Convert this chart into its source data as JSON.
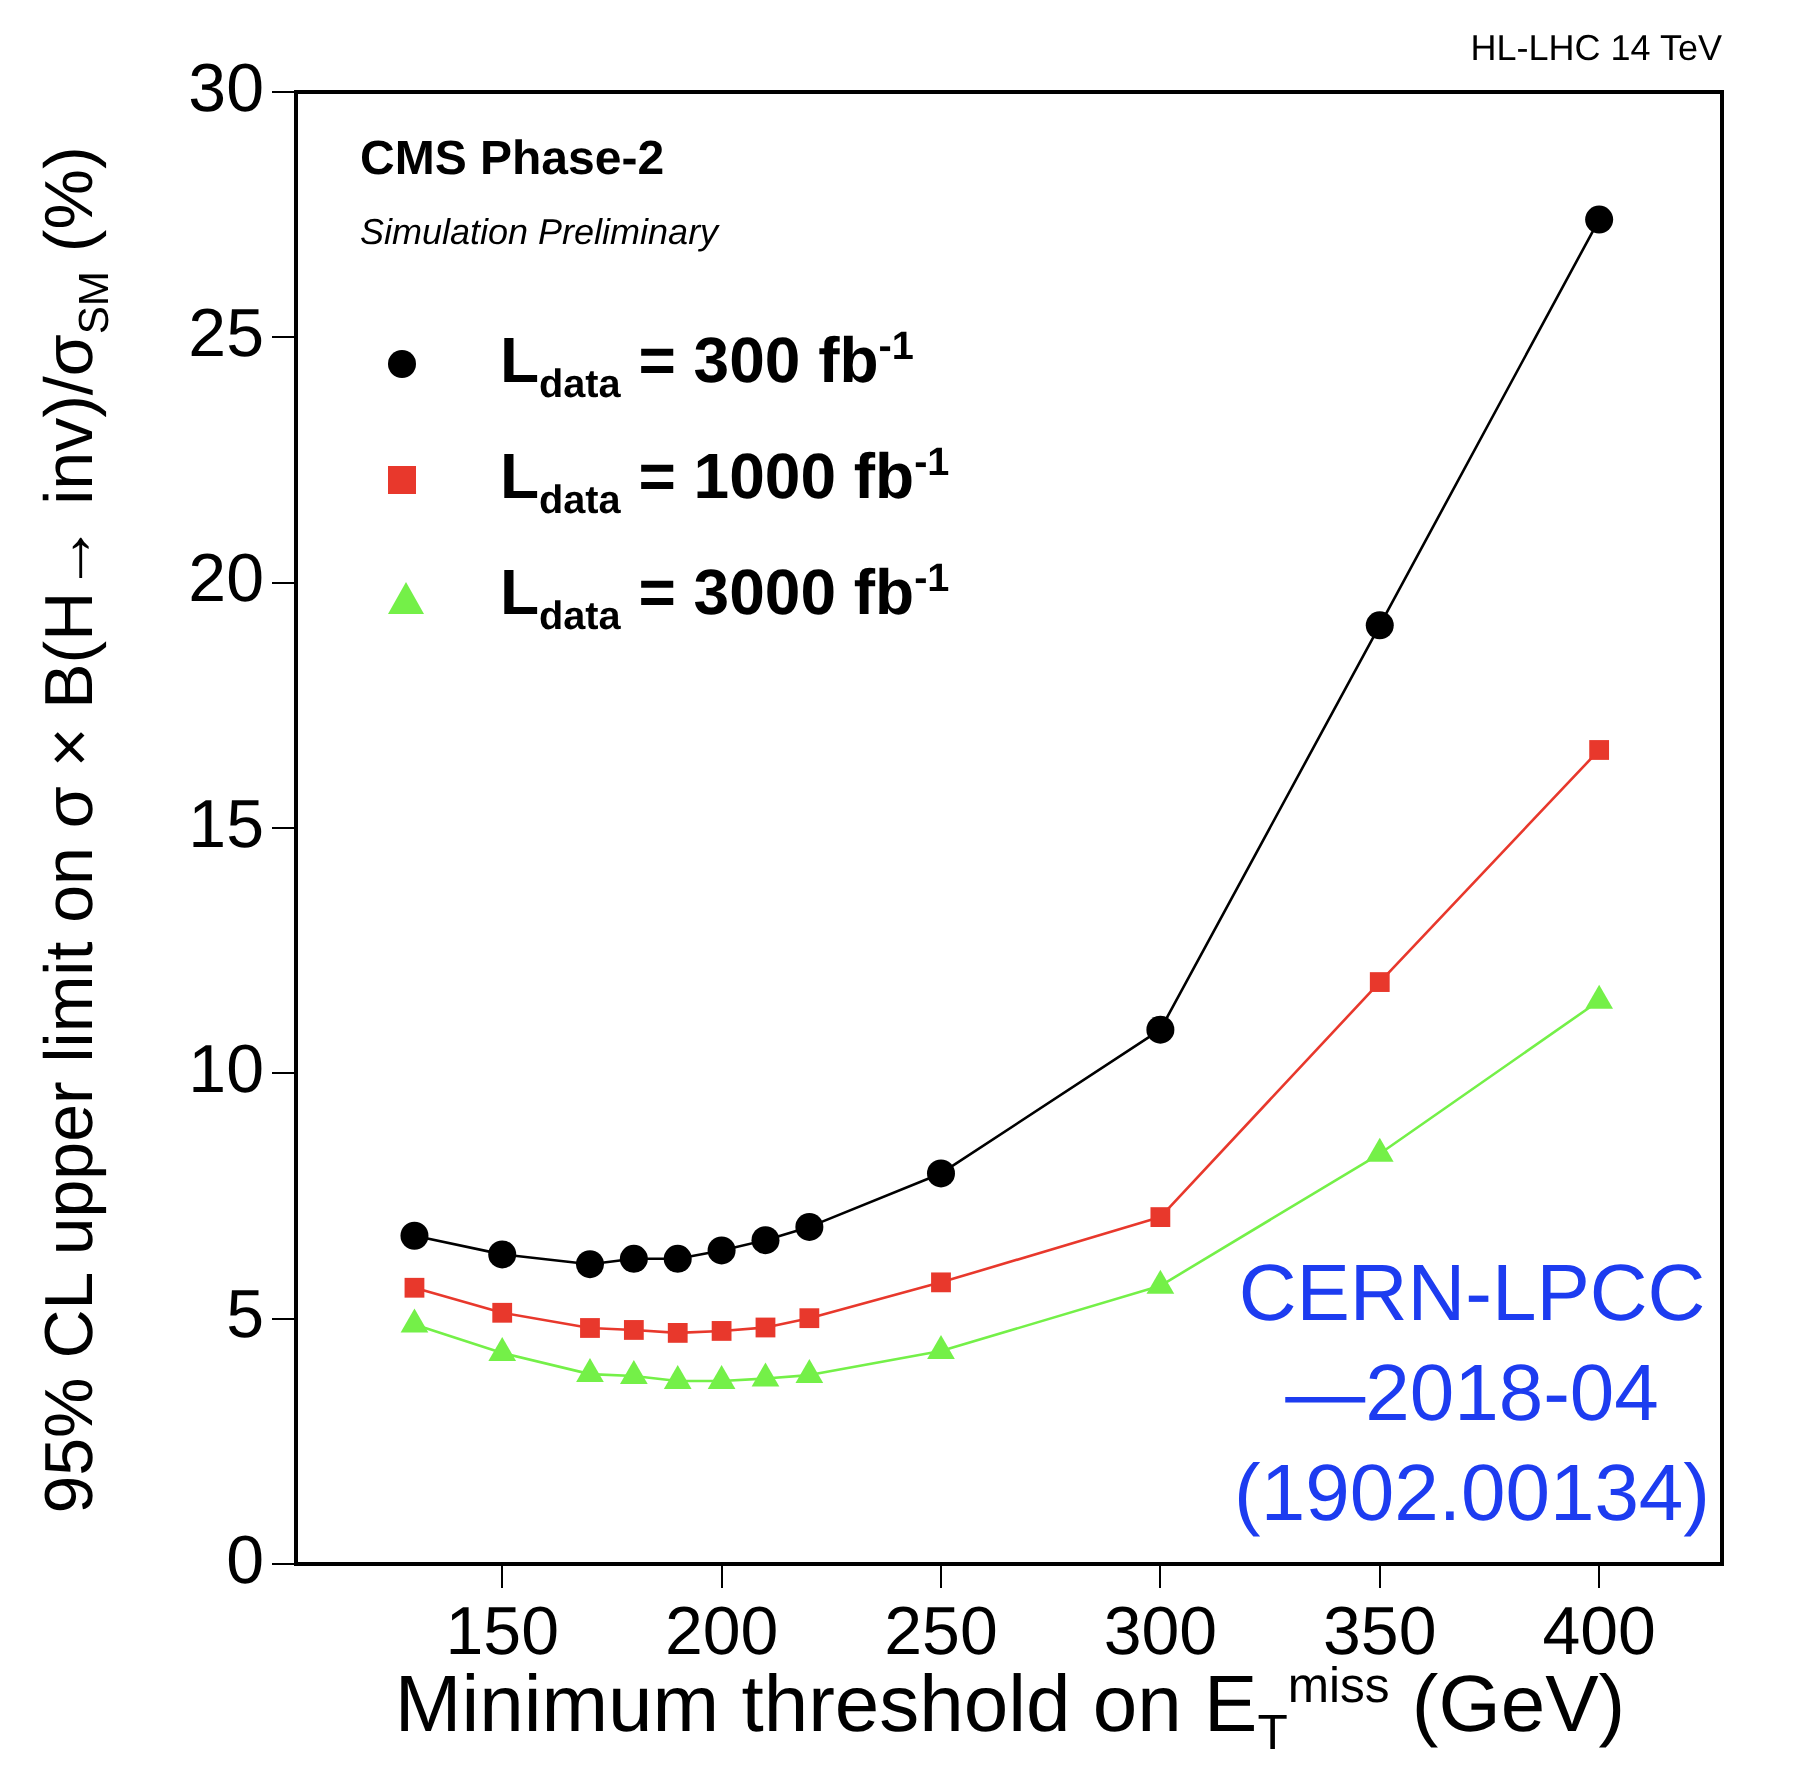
{
  "chart_data": {
    "type": "line",
    "xlabel": "Minimum threshold on E$_{T}$$^{miss}$ (GeV)",
    "ylabel": "95% CL upper limit on σ × B(H→ inv)/σ$_{SM}$ (%)",
    "annotations": [
      "CMS Phase-2",
      "Simulation Preliminary",
      "HL-LHC 14 TeV",
      "CERN-LPCC\n—2018-04\n(1902.00134)"
    ],
    "x": [
      130,
      150,
      170,
      180,
      190,
      200,
      210,
      220,
      250,
      300,
      350,
      400
    ],
    "series": [
      {
        "name": "L$_{data}$ = 300 fb$^{-1}$",
        "color": "#000000",
        "marker": "circle",
        "values": [
          6.69,
          6.31,
          6.11,
          6.22,
          6.22,
          6.39,
          6.6,
          6.87,
          7.96,
          10.89,
          19.13,
          27.4
        ]
      },
      {
        "name": "L$_{data}$ = 1000 fb$^{-1}$",
        "color": "#e8382c",
        "marker": "square",
        "values": [
          5.63,
          5.12,
          4.81,
          4.77,
          4.71,
          4.75,
          4.82,
          5.01,
          5.74,
          7.07,
          11.86,
          16.59
        ]
      },
      {
        "name": "L$_{data}$ = 3000 fb$^{-1}$",
        "color": "#74f048",
        "marker": "triangle",
        "values": [
          4.88,
          4.3,
          3.87,
          3.83,
          3.73,
          3.73,
          3.78,
          3.85,
          4.34,
          5.67,
          8.36,
          11.48
        ]
      }
    ],
    "xlim": [
      103,
      428
    ],
    "xticks": [
      150,
      200,
      250,
      300,
      350,
      400
    ],
    "ylim": [
      0,
      30
    ],
    "yticks": [
      0,
      5,
      10,
      15,
      20,
      25,
      30
    ],
    "legend": "top left",
    "grid": false
  }
}
